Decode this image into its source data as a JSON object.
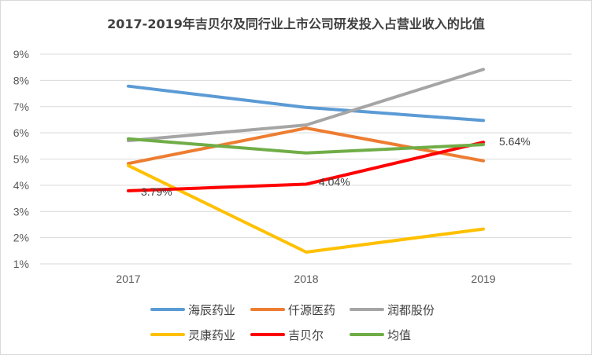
{
  "chart_data": {
    "type": "line",
    "title": "2017-2019年吉贝尔及同行业上市公司研发投入占营业收入的比值",
    "categories": [
      "2017",
      "2018",
      "2019"
    ],
    "y_tick_labels": [
      "1%",
      "2%",
      "3%",
      "4%",
      "5%",
      "6%",
      "7%",
      "8%",
      "9%"
    ],
    "ylim": [
      1,
      9
    ],
    "y_unit": "%",
    "grid": true,
    "legend_position": "bottom",
    "series": [
      {
        "name": "海辰药业",
        "color": "#5b9bd5",
        "values": [
          7.78,
          6.97,
          6.47
        ]
      },
      {
        "name": "仟源医药",
        "color": "#ed7d31",
        "values": [
          4.83,
          6.18,
          4.93
        ]
      },
      {
        "name": "润都股份",
        "color": "#a5a5a5",
        "values": [
          5.7,
          6.3,
          8.42
        ]
      },
      {
        "name": "灵康药业",
        "color": "#ffc000",
        "values": [
          4.75,
          1.45,
          2.33
        ]
      },
      {
        "name": "吉贝尔",
        "color": "#ff0000",
        "values": [
          3.79,
          4.04,
          5.64
        ]
      },
      {
        "name": "均值",
        "color": "#70ad47",
        "values": [
          5.77,
          5.23,
          5.55
        ]
      }
    ],
    "data_labels": [
      {
        "series": "吉贝尔",
        "index": 0,
        "text": "3.79%"
      },
      {
        "series": "吉贝尔",
        "index": 1,
        "text": "4.04%"
      },
      {
        "series": "吉贝尔",
        "index": 2,
        "text": "5.64%"
      }
    ]
  }
}
